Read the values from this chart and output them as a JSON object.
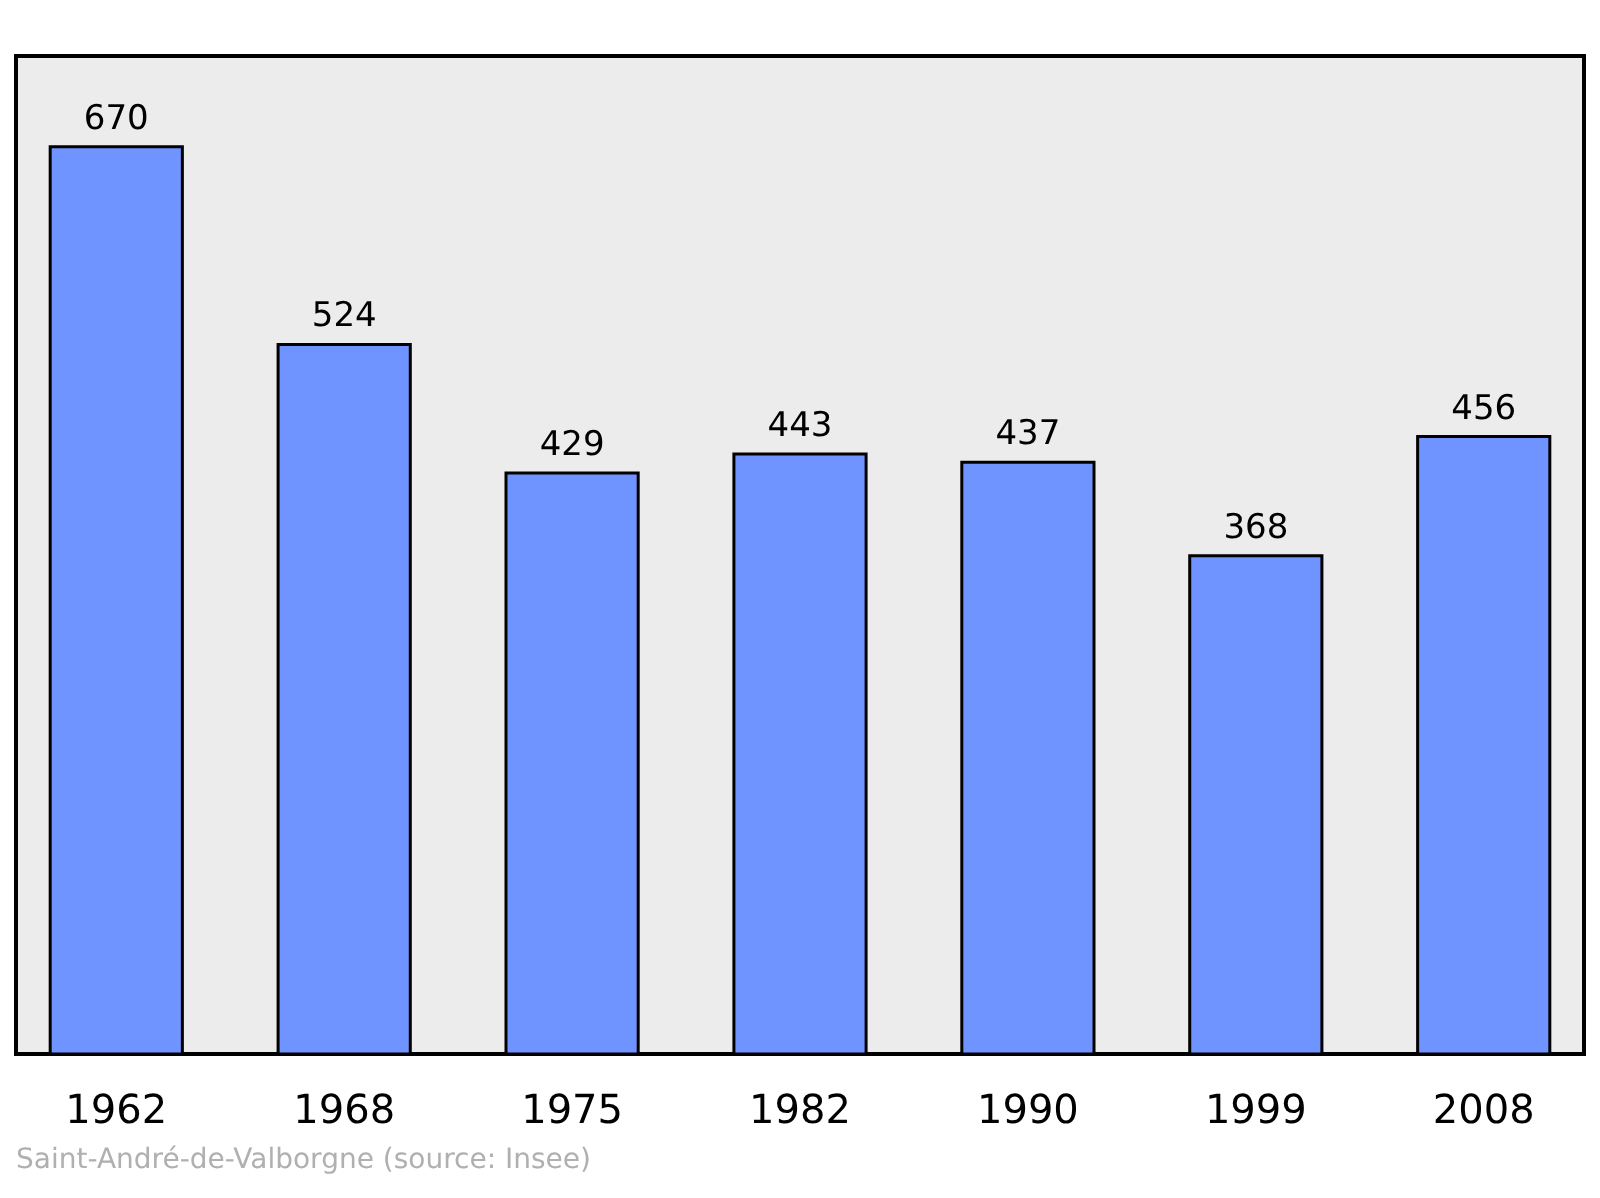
{
  "chart_data": {
    "type": "bar",
    "categories": [
      "1962",
      "1968",
      "1975",
      "1982",
      "1990",
      "1999",
      "2008"
    ],
    "values": [
      670,
      524,
      429,
      443,
      437,
      368,
      456
    ],
    "color": "#7094ff",
    "data_labels": true,
    "annotations": [
      "Saint-André-de-Valborgne    (source: Insee)"
    ]
  }
}
